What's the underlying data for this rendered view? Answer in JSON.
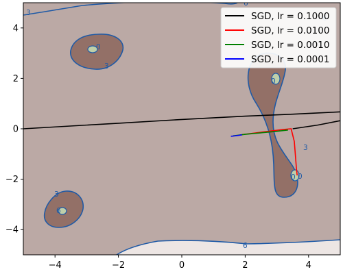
{
  "chart_data": {
    "type": "line",
    "xlim": [
      -5,
      5
    ],
    "ylim": [
      -5,
      5
    ],
    "x_ticks": [
      -4,
      -2,
      0,
      2,
      4
    ],
    "y_ticks": [
      -4,
      -2,
      0,
      2,
      4
    ],
    "x_tick_labels": [
      "−4",
      "−2",
      "0",
      "2",
      "4"
    ],
    "y_tick_labels": [
      "−4",
      "−2",
      "0",
      "2",
      "4"
    ],
    "legend_position": "top-right",
    "grid": false,
    "background": {
      "outer_fill": "#ede6e4",
      "mid_fill": "#bba9a5",
      "inner_fill": "#937067",
      "minimum_fill": "#bfcfa9",
      "contour_color": "#1f5aa6"
    },
    "contour_labels": [
      "3",
      "6",
      "3",
      "0",
      "3",
      "6",
      "0",
      "3",
      "0",
      "0",
      "6",
      "6"
    ],
    "series": [
      {
        "name": "SGD, lr = 0.1000",
        "color": "#000000",
        "x": [
          -5.0,
          -2.0,
          0.0,
          2.0,
          3.5,
          5.0
        ],
        "y": [
          0.0,
          0.22,
          0.37,
          0.5,
          0.58,
          0.67
        ]
      },
      {
        "name": "SGD, lr = 0.0100",
        "color": "#ff0000",
        "x": [
          1.9,
          2.6,
          3.2,
          3.45,
          3.55,
          3.62,
          3.64
        ],
        "y": [
          -0.23,
          -0.12,
          -0.03,
          0.0,
          -0.5,
          -1.6,
          -1.85
        ]
      },
      {
        "name": "SGD, lr = 0.0010",
        "color": "#008000",
        "x": [
          1.62,
          2.0,
          2.5,
          3.0,
          3.35
        ],
        "y": [
          -0.28,
          -0.22,
          -0.16,
          -0.1,
          -0.05
        ]
      },
      {
        "name": "SGD, lr = 0.0001",
        "color": "#0000ff",
        "x": [
          1.55,
          1.75,
          1.9
        ],
        "y": [
          -0.3,
          -0.27,
          -0.24
        ]
      }
    ],
    "extra_lines": [
      {
        "color": "#000000",
        "x": [
          3.5,
          4.3,
          5.0
        ],
        "y": [
          0.0,
          0.15,
          0.32
        ]
      }
    ]
  }
}
